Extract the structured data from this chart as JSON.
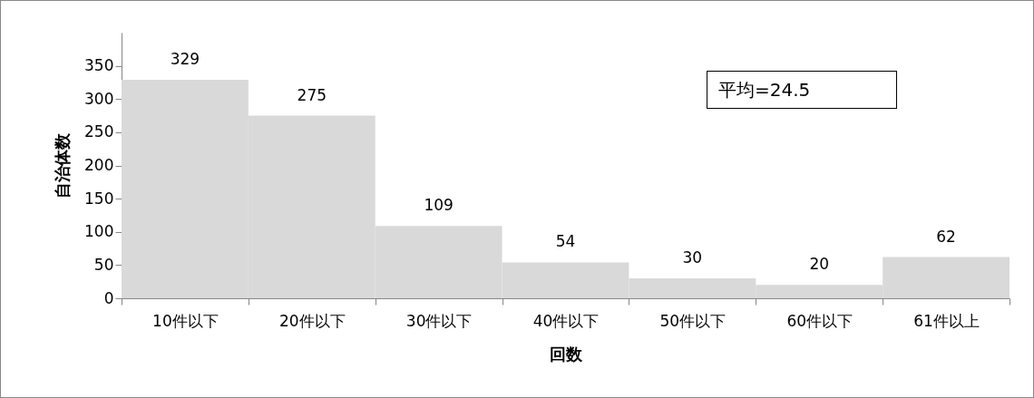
{
  "chart_data": {
    "type": "bar",
    "xlabel": "回数",
    "ylabel": "自治体数",
    "categories": [
      "10件以下",
      "20件以下",
      "30件以下",
      "40件以下",
      "50件以下",
      "60件以下",
      "61件以上"
    ],
    "values": [
      329,
      275,
      109,
      54,
      30,
      20,
      62
    ],
    "color": "#d9d9d9",
    "ylim": [
      0,
      400
    ],
    "yticks": [
      0,
      50,
      100,
      150,
      200,
      250,
      300,
      350
    ],
    "grid": false,
    "data_labels": true,
    "annotations": [
      "平均=24.5"
    ]
  }
}
